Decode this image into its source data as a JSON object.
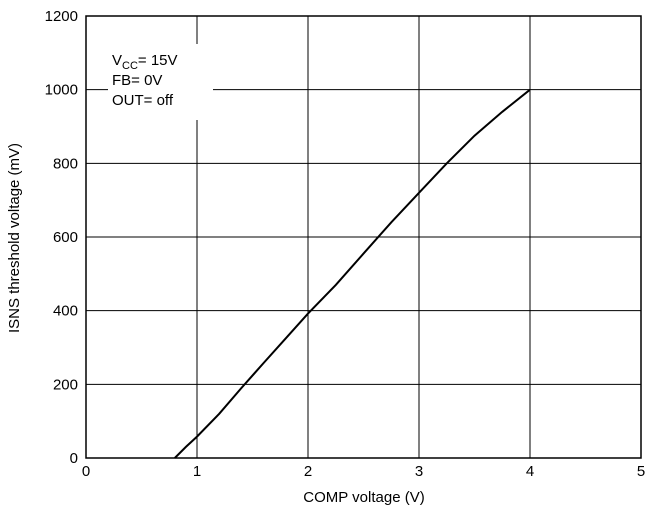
{
  "chart_data": {
    "type": "line",
    "xlabel": "COMP voltage  (V)",
    "ylabel": "ISNS  threshold voltage  (mV)",
    "xlim": [
      0,
      5
    ],
    "ylim": [
      0,
      1200
    ],
    "x_ticks": [
      "0",
      "1",
      "2",
      "3",
      "4",
      "5"
    ],
    "y_ticks": [
      "0",
      "200",
      "400",
      "600",
      "800",
      "1000",
      "1200"
    ],
    "grid": true,
    "annotation": {
      "vcc_main": "V",
      "vcc_sub": "CC",
      "vcc_rest": "= 15V",
      "fb": "FB= 0V",
      "out": "OUT= off"
    },
    "series": [
      {
        "x": [
          0.8,
          0.9,
          1.0,
          1.2,
          1.4,
          1.6,
          1.8,
          2.0,
          2.25,
          2.5,
          2.75,
          3.0,
          3.25,
          3.5,
          3.75,
          4.0
        ],
        "y": [
          0,
          30,
          58,
          120,
          190,
          258,
          325,
          392,
          470,
          555,
          640,
          720,
          800,
          875,
          940,
          1000
        ]
      }
    ],
    "line_color": "#000000"
  }
}
